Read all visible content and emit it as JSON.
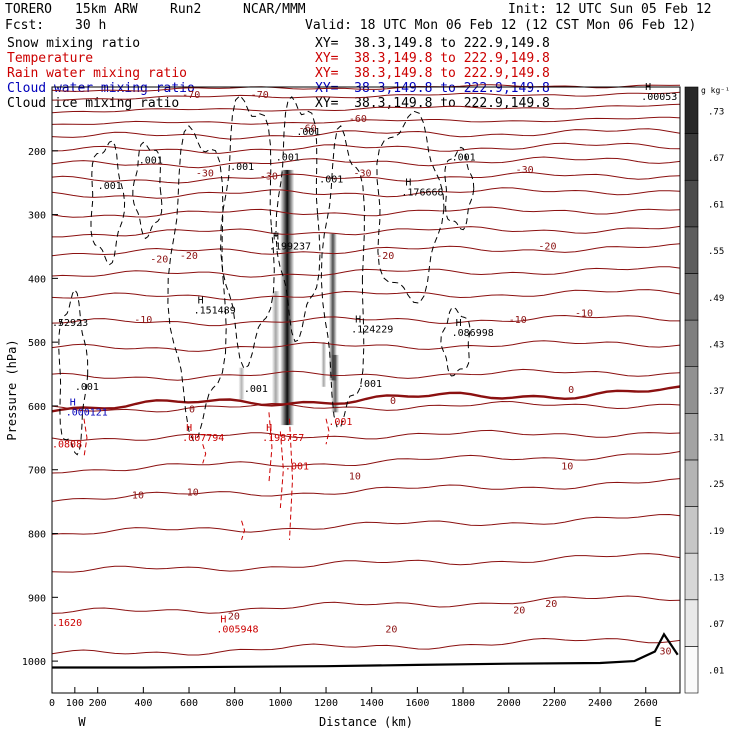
{
  "header": {
    "model": "TORERO",
    "resolution": "15km ARW",
    "run": "Run2",
    "org": "NCAR/MMM",
    "init": "Init: 12 UTC Sun 05 Feb 12",
    "fcst_label": "Fcst:",
    "fcst_value": "30 h",
    "valid": "Valid: 18 UTC Mon 06 Feb 12 (12 CST Mon 06 Feb 12)"
  },
  "fields": [
    {
      "name": "Snow mixing ratio",
      "range": "XY=  38.3,149.8 to 222.9,149.8",
      "color": "#000000"
    },
    {
      "name": "Temperature",
      "range": "XY=  38.3,149.8 to 222.9,149.8",
      "color": "#cc0000"
    },
    {
      "name": "Rain water mixing ratio",
      "range": "XY=  38.3,149.8 to 222.9,149.8",
      "color": "#cc0000"
    },
    {
      "name": "Cloud water mixing ratio",
      "range": "XY=  38.3,149.8 to 222.9,149.8",
      "color": "#0000bb"
    },
    {
      "name": "Cloud ice mixing ratio",
      "range": "XY=  38.3,149.8 to 222.9,149.8",
      "color": "#000000"
    }
  ],
  "colors": {
    "temperature": "#8b1010",
    "freezing_line": "#8b1010",
    "rain": "#cc0000",
    "cloud_water": "#0000bb",
    "snow": "#000000",
    "terrain": "#000000"
  },
  "chart_data": {
    "type": "cross-section",
    "xlabel": "Distance (km)",
    "ylabel": "Pressure (hPa)",
    "xlim": [
      0,
      2750
    ],
    "ylim": [
      1050,
      100
    ],
    "x_ticks": [
      "0",
      "100",
      "200",
      "400",
      "600",
      "800",
      "1000",
      "1200",
      "1400",
      "1600",
      "1800",
      "2000",
      "2200",
      "2400",
      "2600"
    ],
    "y_ticks": [
      "200",
      "300",
      "400",
      "500",
      "600",
      "700",
      "800",
      "900",
      "1000"
    ],
    "x_end_labels": {
      "left": "W",
      "right": "E"
    },
    "colorbar": {
      "unit": "g kg⁻¹",
      "ticks": [
        ".01",
        ".07",
        ".13",
        ".19",
        ".25",
        ".31",
        ".37",
        ".43",
        ".49",
        ".55",
        ".61",
        ".67",
        ".73"
      ]
    },
    "temperature_contours_degC": [
      -70,
      -60,
      -50,
      -40,
      -30,
      -20,
      -10,
      0,
      10,
      20,
      30
    ],
    "temperature_labels": [
      {
        "text": "-70",
        "x": 570,
        "p": 117
      },
      {
        "text": "-70",
        "x": 870,
        "p": 117
      },
      {
        "text": "-60",
        "x": 1080,
        "p": 170
      },
      {
        "text": "-60",
        "x": 1300,
        "p": 155
      },
      {
        "text": "-30",
        "x": 630,
        "p": 240
      },
      {
        "text": "-30",
        "x": 910,
        "p": 245
      },
      {
        "text": "-30",
        "x": 1320,
        "p": 240
      },
      {
        "text": "-30",
        "x": 2030,
        "p": 235
      },
      {
        "text": "-20",
        "x": 430,
        "p": 375
      },
      {
        "text": "-20",
        "x": 560,
        "p": 370
      },
      {
        "text": "-20",
        "x": 1420,
        "p": 370
      },
      {
        "text": "-20",
        "x": 2130,
        "p": 355
      },
      {
        "text": "-10",
        "x": 360,
        "p": 470
      },
      {
        "text": "-10",
        "x": 2000,
        "p": 470
      },
      {
        "text": "-10",
        "x": 2290,
        "p": 460
      },
      {
        "text": "0",
        "x": 600,
        "p": 610
      },
      {
        "text": "0",
        "x": 1480,
        "p": 597
      },
      {
        "text": "0",
        "x": 2260,
        "p": 580
      },
      {
        "text": "10",
        "x": 350,
        "p": 745
      },
      {
        "text": "10",
        "x": 590,
        "p": 740
      },
      {
        "text": "10",
        "x": 1300,
        "p": 715
      },
      {
        "text": "10",
        "x": 2230,
        "p": 700
      },
      {
        "text": "20",
        "x": 770,
        "p": 935
      },
      {
        "text": "20",
        "x": 1460,
        "p": 955
      },
      {
        "text": "20",
        "x": 2020,
        "p": 925
      },
      {
        "text": "20",
        "x": 2160,
        "p": 915
      },
      {
        "text": "30",
        "x": 2660,
        "p": 990
      }
    ],
    "extrema": [
      {
        "text": "H",
        "value": ".00053",
        "x": 2580,
        "p": 120
      },
      {
        "text": "H",
        "value": ".176668",
        "x": 1530,
        "p": 270
      },
      {
        "text": "H",
        "value": ".199237",
        "x": 950,
        "p": 355
      },
      {
        "text": "H",
        "value": ".151489",
        "x": 620,
        "p": 455
      },
      {
        "text": "H",
        "value": ".124229",
        "x": 1310,
        "p": 485
      },
      {
        "text": "H",
        "value": ".086998",
        "x": 1750,
        "p": 490
      },
      {
        "text": "H",
        "value": ".198757",
        "x": 920,
        "p": 655
      },
      {
        "text": "H",
        "value": ".007794",
        "x": 570,
        "p": 655
      },
      {
        "text": "H",
        "value": ".005948",
        "x": 720,
        "p": 955
      },
      {
        "text": "H",
        "value": ".000121",
        "x": 60,
        "p": 615
      },
      {
        "text": "",
        "value": ".52923",
        "x": 0,
        "p": 475
      }
    ],
    "snow_labels": [
      {
        "text": ".001",
        "x": 200,
        "p": 260
      },
      {
        "text": ".001",
        "x": 380,
        "p": 220
      },
      {
        "text": ".001",
        "x": 780,
        "p": 230
      },
      {
        "text": ".001",
        "x": 980,
        "p": 215
      },
      {
        "text": ".001",
        "x": 1070,
        "p": 175
      },
      {
        "text": ".001",
        "x": 1170,
        "p": 250
      },
      {
        "text": ".001",
        "x": 1750,
        "p": 215
      },
      {
        "text": ".001",
        "x": 1340,
        "p": 570
      },
      {
        "text": ".001",
        "x": 100,
        "p": 575
      },
      {
        "text": ".001",
        "x": 840,
        "p": 578
      }
    ],
    "rain_labels": [
      {
        "text": ".001",
        "x": 1210,
        "p": 630
      },
      {
        "text": ".001",
        "x": 1020,
        "p": 700
      },
      {
        "text": ".0808",
        "x": 0,
        "p": 665
      },
      {
        "text": ".1620",
        "x": 0,
        "p": 945
      }
    ]
  }
}
